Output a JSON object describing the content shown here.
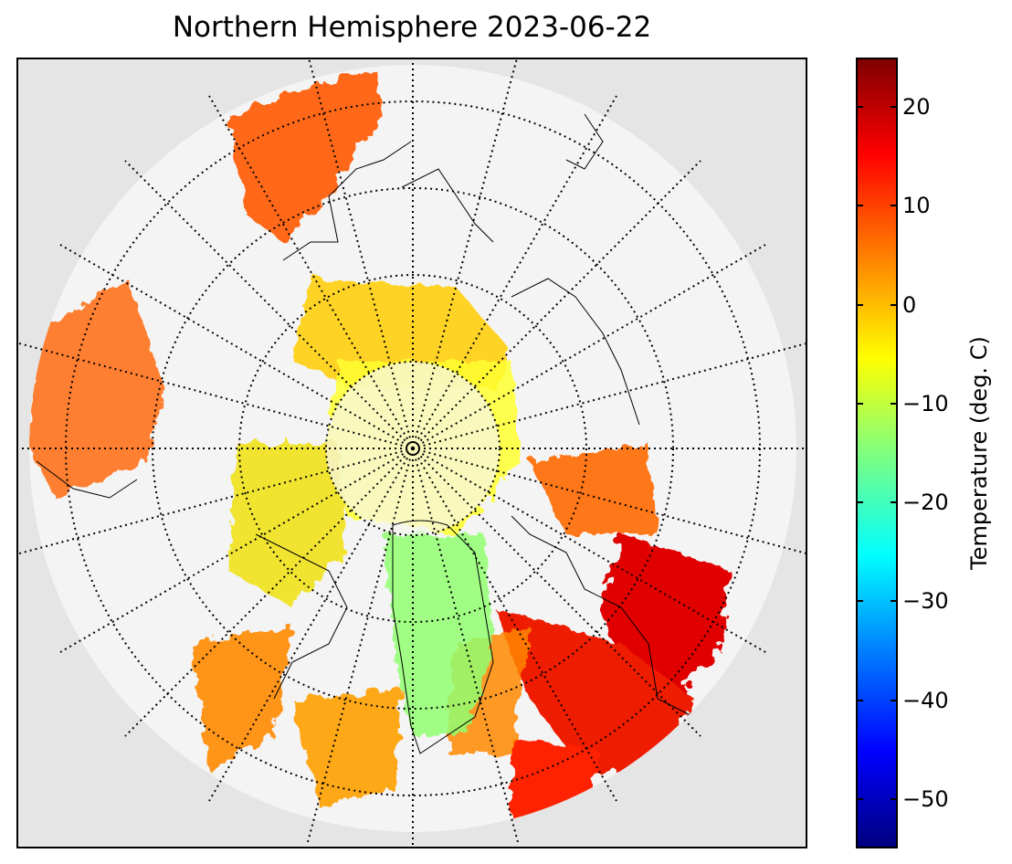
{
  "title": "Northern Hemisphere 2023-06-22",
  "map": {
    "projection": "north-polar-stereographic",
    "gridlines": "dotted",
    "background_color": "#e5e5e5",
    "coastline_color": "#000000"
  },
  "colorbar": {
    "label": "Temperature (deg. C)",
    "colormap": "jet",
    "range": [
      -55,
      25
    ],
    "ticks": [
      {
        "value": 20,
        "label": "20"
      },
      {
        "value": 10,
        "label": "10"
      },
      {
        "value": 0,
        "label": "0"
      },
      {
        "value": -10,
        "label": "−10"
      },
      {
        "value": -20,
        "label": "−20"
      },
      {
        "value": -30,
        "label": "−30"
      },
      {
        "value": -40,
        "label": "−40"
      },
      {
        "value": -50,
        "label": "−50"
      }
    ]
  }
}
